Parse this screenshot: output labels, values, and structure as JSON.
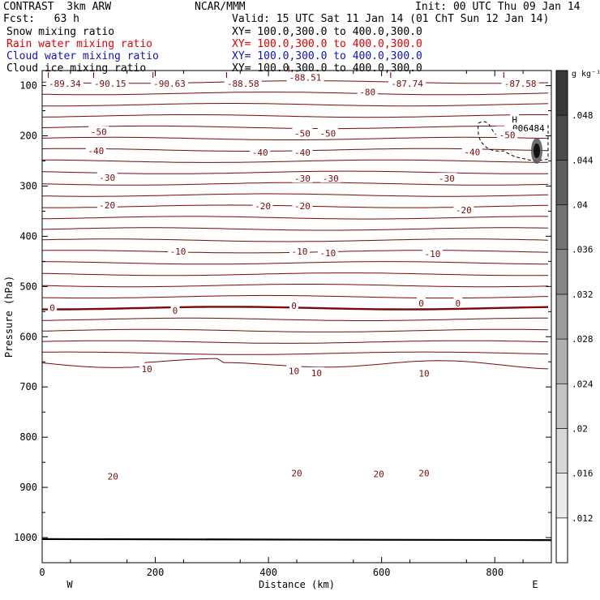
{
  "header": {
    "left_line1": "CONTRAST  3km ARW",
    "left_line2": "Fcst:   63 h",
    "center_line1": "NCAR/MMM",
    "init": "Init: 00 UTC Thu 09 Jan 14",
    "valid": "Valid: 15 UTC Sat 11 Jan 14 (01 ChT Sun 12 Jan 14)",
    "fields": [
      {
        "name": "Snow mixing ratio",
        "xy": "XY= 100.0,300.0 to 400.0,300.0",
        "color": "#000000"
      },
      {
        "name": "Rain water mixing ratio",
        "xy": "XY= 100.0,300.0 to 400.0,300.0",
        "color": "#e00000"
      },
      {
        "name": "Cloud water mixing ratio",
        "xy": "XY= 100.0,300.0 to 400.0,300.0",
        "color": "#1010c8"
      },
      {
        "name": "Cloud ice mixing ratio",
        "xy": "XY= 100.0,300.0 to 400.0,300.0",
        "color": "#000000"
      }
    ]
  },
  "chart_data": {
    "type": "contour",
    "xlabel": "Distance (km)",
    "ylabel": "Pressure (hPa)",
    "xlim": [
      0,
      900
    ],
    "ylim": [
      1050,
      70
    ],
    "xticks": [
      0,
      200,
      400,
      600,
      800
    ],
    "yticks": [
      100,
      200,
      300,
      400,
      500,
      600,
      700,
      800,
      900,
      1000
    ],
    "x_end_labels": {
      "left": "W",
      "right": "E"
    },
    "contour_color": "#7a0a0a",
    "contour_labels": [
      {
        "text": "-50",
        "x": 100,
        "p": 192
      },
      {
        "text": "-50",
        "x": 460,
        "p": 195
      },
      {
        "text": "-50",
        "x": 505,
        "p": 195
      },
      {
        "text": "-50",
        "x": 820,
        "p": 192
      },
      {
        "text": "-40",
        "x": 95,
        "p": 230
      },
      {
        "text": "-40",
        "x": 385,
        "p": 233
      },
      {
        "text": "-40",
        "x": 460,
        "p": 233
      },
      {
        "text": "-40",
        "x": 760,
        "p": 232
      },
      {
        "text": "-30",
        "x": 115,
        "p": 283
      },
      {
        "text": "-30",
        "x": 460,
        "p": 285
      },
      {
        "text": "-30",
        "x": 510,
        "p": 285
      },
      {
        "text": "-30",
        "x": 715,
        "p": 285
      },
      {
        "text": "-20",
        "x": 115,
        "p": 338
      },
      {
        "text": "-20",
        "x": 390,
        "p": 340
      },
      {
        "text": "-20",
        "x": 460,
        "p": 340
      },
      {
        "text": "-20",
        "x": 745,
        "p": 348
      },
      {
        "text": "-10",
        "x": 240,
        "p": 430
      },
      {
        "text": "-10",
        "x": 455,
        "p": 430
      },
      {
        "text": "-10",
        "x": 505,
        "p": 433
      },
      {
        "text": "-10",
        "x": 690,
        "p": 435
      },
      {
        "text": "0",
        "x": 18,
        "p": 542
      },
      {
        "text": "0",
        "x": 235,
        "p": 548
      },
      {
        "text": "0",
        "x": 445,
        "p": 538
      },
      {
        "text": "0",
        "x": 670,
        "p": 533
      },
      {
        "text": "0",
        "x": 735,
        "p": 533
      },
      {
        "text": "10",
        "x": 185,
        "p": 664
      },
      {
        "text": "10",
        "x": 445,
        "p": 668
      },
      {
        "text": "10",
        "x": 485,
        "p": 672
      },
      {
        "text": "10",
        "x": 675,
        "p": 673
      },
      {
        "text": "20",
        "x": 125,
        "p": 878
      },
      {
        "text": "20",
        "x": 450,
        "p": 872
      },
      {
        "text": "20",
        "x": 595,
        "p": 873
      },
      {
        "text": "20",
        "x": 675,
        "p": 872
      }
    ],
    "low_labels": [
      {
        "text": "-89.34",
        "x": 40,
        "p": 96
      },
      {
        "text": "-90.15",
        "x": 120,
        "p": 96
      },
      {
        "text": "-90.63",
        "x": 225,
        "p": 96
      },
      {
        "text": "-88.58",
        "x": 355,
        "p": 96
      },
      {
        "text": "-88.51",
        "x": 465,
        "p": 84
      },
      {
        "text": "-87.74",
        "x": 645,
        "p": 96
      },
      {
        "text": "-87.58",
        "x": 845,
        "p": 96
      }
    ],
    "other_labels": [
      {
        "text": "-80",
        "x": 575,
        "p": 113
      },
      {
        "text": "H",
        "x": 835,
        "p": 168
      },
      {
        "text": ".006484",
        "x": 855,
        "p": 185
      },
      {
        "text": "-50",
        "x": 822,
        "p": 198
      }
    ],
    "colorbar": {
      "unit": "g kg⁻¹",
      "ticks": [
        ".012",
        ".016",
        ".02",
        ".024",
        ".028",
        ".032",
        ".036",
        ".04",
        ".044",
        ".048"
      ],
      "range": [
        0.008,
        0.052
      ]
    }
  }
}
